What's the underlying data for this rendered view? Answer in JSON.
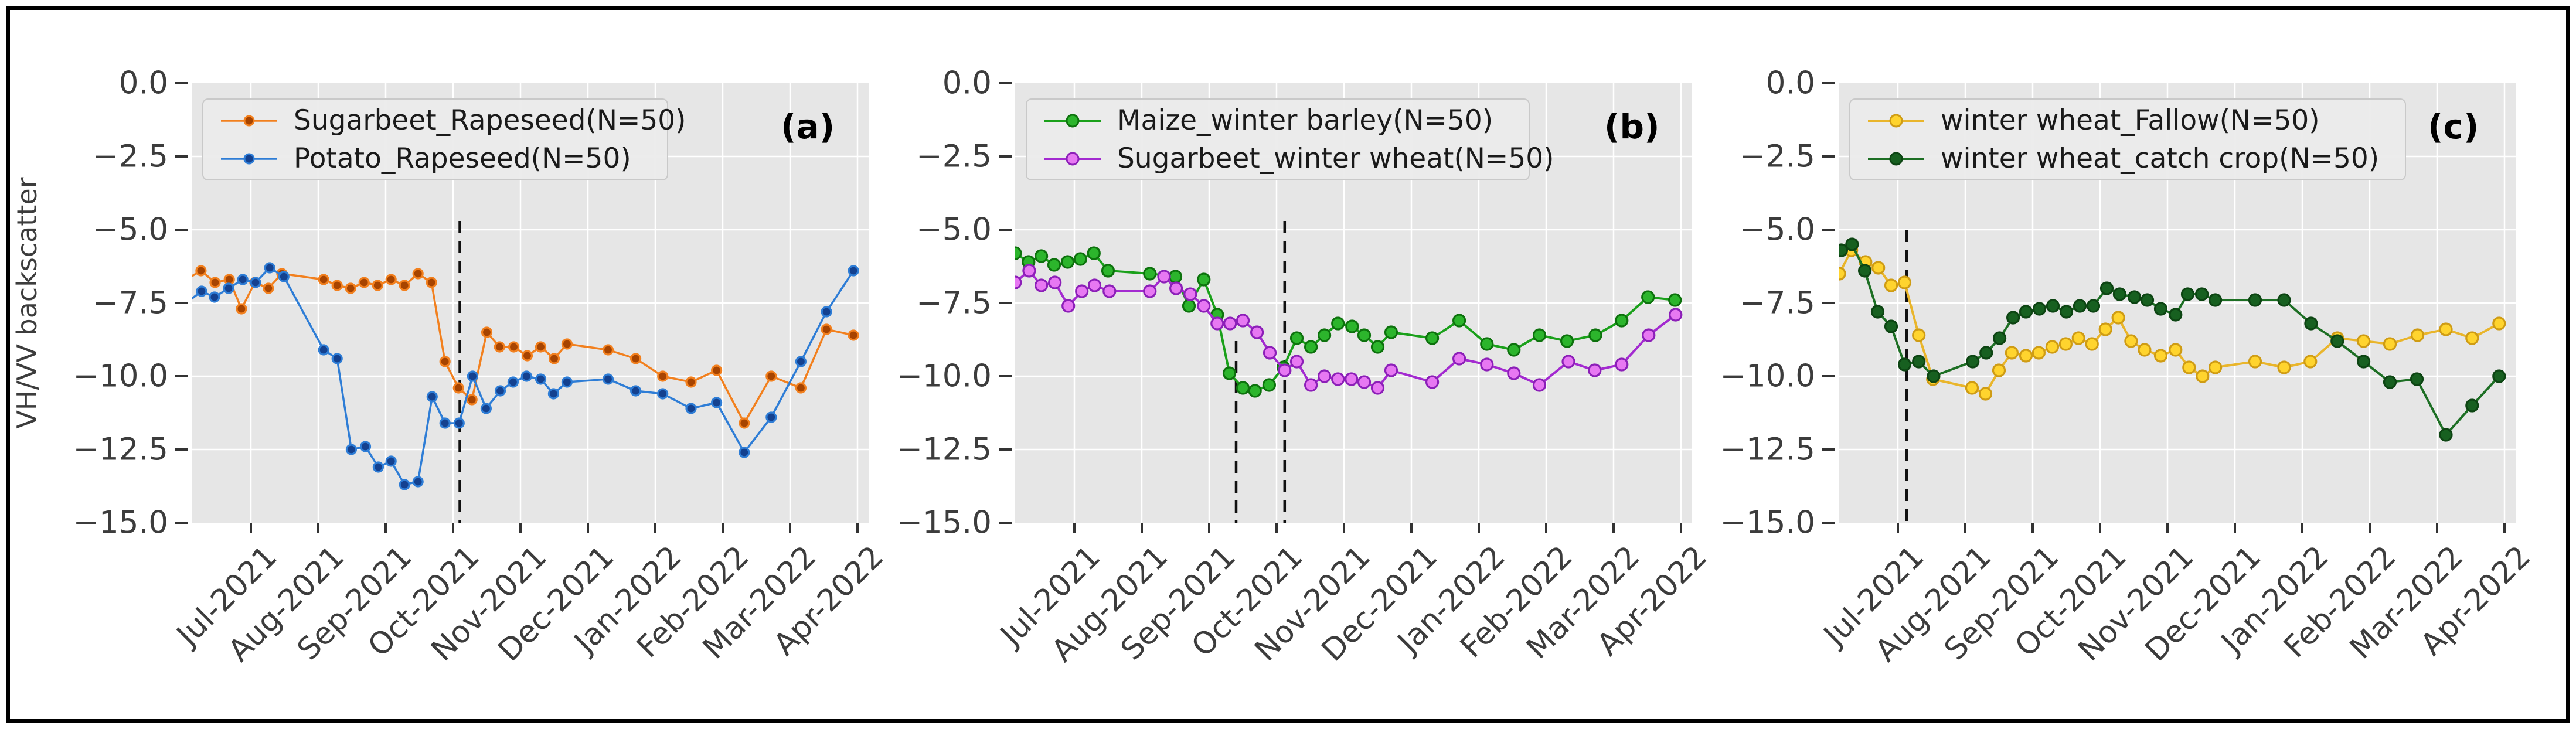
{
  "figure": {
    "ylabel": "VH/VV backscatter",
    "background": "#ffffff",
    "plot_background": "#e6e6e6",
    "gridline_color": "#ffffff",
    "border_color": "#000000",
    "tick_color": "#3c3c3c"
  },
  "axis": {
    "y_tick_labels": [
      "0.0",
      "−2.5",
      "−5.0",
      "−7.5",
      "−10.0",
      "−12.5",
      "−15.0"
    ],
    "y_tick_values": [
      0,
      -2.5,
      -5,
      -7.5,
      -10,
      -12.5,
      -15
    ],
    "x_tick_labels": [
      "Jul-2021",
      "Aug-2021",
      "Sep-2021",
      "Oct-2021",
      "Nov-2021",
      "Dec-2021",
      "Jan-2022",
      "Feb-2022",
      "Mar-2022",
      "Apr-2022"
    ],
    "ylim": [
      0,
      -15
    ]
  },
  "chart_data": [
    {
      "panel": "a",
      "letter": "(a)",
      "type": "line",
      "title": "",
      "xlabel": "",
      "ylabel": "VH/VV backscatter",
      "ylim": [
        0,
        -15
      ],
      "x_unit": "months since Jul-2021 (0 = Jul-2021, 9 = Apr-2022)",
      "grid": true,
      "legend_position": "upper-left",
      "dashed_lines": [
        {
          "x": 3.1,
          "y_top": -4.7,
          "y_bottom": -15
        }
      ],
      "series": [
        {
          "name": "Sugarbeet_Rapeseed(N=50)",
          "color": "#f2801e",
          "marker_face": "#a74400",
          "marker_r": 8,
          "line_w": 3.5,
          "x": [
            -0.96,
            -0.74,
            -0.53,
            -0.32,
            -0.14,
            0.06,
            0.26,
            0.46,
            1.08,
            1.28,
            1.48,
            1.68,
            1.88,
            2.08,
            2.28,
            2.48,
            2.68,
            2.88,
            3.08,
            3.28,
            3.5,
            3.69,
            3.9,
            4.1,
            4.3,
            4.5,
            4.69,
            5.3,
            5.71,
            6.11,
            6.53,
            6.91,
            7.32,
            7.72,
            8.16,
            8.54,
            8.94
          ],
          "y": [
            -6.7,
            -6.4,
            -6.8,
            -6.7,
            -7.7,
            -6.8,
            -7.0,
            -6.5,
            -6.7,
            -6.9,
            -7.0,
            -6.8,
            -6.9,
            -6.7,
            -6.9,
            -6.5,
            -6.8,
            -9.5,
            -10.4,
            -10.8,
            -8.5,
            -9.0,
            -9.0,
            -9.3,
            -9.0,
            -9.4,
            -8.9,
            -9.1,
            -9.4,
            -10.0,
            -10.2,
            -9.8,
            -11.6,
            -10.0,
            -10.4,
            -8.4,
            -8.6
          ]
        },
        {
          "name": "Potato_Rapeseed(N=50)",
          "color": "#2e7dd6",
          "marker_face": "#14418f",
          "marker_r": 8,
          "line_w": 3.5,
          "x": [
            -0.96,
            -0.73,
            -0.54,
            -0.33,
            -0.12,
            0.07,
            0.28,
            0.49,
            1.08,
            1.28,
            1.49,
            1.7,
            1.89,
            2.08,
            2.28,
            2.48,
            2.69,
            2.88,
            3.09,
            3.29,
            3.49,
            3.7,
            3.89,
            4.09,
            4.3,
            4.49,
            4.69,
            5.3,
            5.71,
            6.11,
            6.53,
            6.91,
            7.32,
            7.72,
            8.16,
            8.54,
            8.94
          ],
          "y": [
            -7.5,
            -7.1,
            -7.3,
            -7.0,
            -6.7,
            -6.8,
            -6.3,
            -6.6,
            -9.1,
            -9.4,
            -12.5,
            -12.4,
            -13.1,
            -12.9,
            -13.7,
            -13.6,
            -10.7,
            -11.6,
            -11.6,
            -10.0,
            -11.1,
            -10.5,
            -10.2,
            -10.0,
            -10.1,
            -10.6,
            -10.2,
            -10.1,
            -10.5,
            -10.6,
            -11.1,
            -10.9,
            -12.6,
            -11.4,
            -9.5,
            -7.8,
            -6.4
          ]
        }
      ]
    },
    {
      "panel": "b",
      "letter": "(b)",
      "type": "line",
      "title": "",
      "xlabel": "",
      "ylabel": "VH/VV backscatter",
      "ylim": [
        0,
        -15
      ],
      "x_unit": "months since Jul-2021 (0 = Jul-2021, 9 = Apr-2022)",
      "grid": true,
      "legend_position": "upper-left",
      "dashed_lines": [
        {
          "x": 2.4,
          "y_top": -8.8,
          "y_bottom": -15
        },
        {
          "x": 3.12,
          "y_top": -4.7,
          "y_bottom": -15
        }
      ],
      "series": [
        {
          "name": "Maize_winter barley(N=50)",
          "color": "#1aa01a",
          "marker_face": "#2cb52c",
          "marker_edge": "#0d720d",
          "marker_r": 10,
          "line_w": 4,
          "x": [
            -0.88,
            -0.68,
            -0.49,
            -0.3,
            -0.1,
            0.09,
            0.29,
            0.5,
            1.12,
            1.5,
            1.7,
            1.92,
            2.12,
            2.3,
            2.5,
            2.68,
            2.89,
            3.1,
            3.3,
            3.51,
            3.71,
            3.91,
            4.12,
            4.3,
            4.5,
            4.7,
            5.31,
            5.71,
            6.12,
            6.52,
            6.9,
            7.31,
            7.73,
            8.12,
            8.51,
            8.91
          ],
          "y": [
            -5.8,
            -6.1,
            -5.9,
            -6.2,
            -6.1,
            -6.0,
            -5.8,
            -6.4,
            -6.5,
            -6.6,
            -7.6,
            -6.7,
            -7.9,
            -9.9,
            -10.4,
            -10.5,
            -10.3,
            -9.7,
            -8.7,
            -9.0,
            -8.6,
            -8.2,
            -8.3,
            -8.6,
            -9.0,
            -8.5,
            -8.7,
            -8.1,
            -8.9,
            -9.1,
            -8.6,
            -8.8,
            -8.6,
            -8.1,
            -7.3,
            -7.4
          ]
        },
        {
          "name": "Sugarbeet_winter wheat(N=50)",
          "color": "#a32ad0",
          "marker_face": "#e778f2",
          "marker_edge": "#8c1fb8",
          "marker_r": 10,
          "line_w": 4,
          "x": [
            -0.88,
            -0.67,
            -0.49,
            -0.29,
            -0.09,
            0.11,
            0.3,
            0.52,
            1.12,
            1.33,
            1.51,
            1.72,
            1.92,
            2.12,
            2.31,
            2.5,
            2.71,
            2.9,
            3.12,
            3.3,
            3.51,
            3.71,
            3.91,
            4.11,
            4.3,
            4.5,
            4.7,
            5.31,
            5.71,
            6.12,
            6.52,
            6.9,
            7.33,
            7.72,
            8.12,
            8.52,
            8.92
          ],
          "y": [
            -6.8,
            -6.4,
            -6.9,
            -6.8,
            -7.6,
            -7.1,
            -6.9,
            -7.1,
            -7.1,
            -6.6,
            -7.0,
            -7.2,
            -7.6,
            -8.2,
            -8.2,
            -8.1,
            -8.5,
            -9.2,
            -9.8,
            -9.5,
            -10.3,
            -10.0,
            -10.1,
            -10.1,
            -10.2,
            -10.4,
            -9.8,
            -10.2,
            -9.4,
            -9.6,
            -9.9,
            -10.3,
            -9.5,
            -9.8,
            -9.6,
            -8.6,
            -7.9
          ]
        }
      ]
    },
    {
      "panel": "c",
      "letter": "(c)",
      "type": "line",
      "title": "",
      "xlabel": "",
      "ylabel": "VH/VV backscatter",
      "ylim": [
        0,
        -15
      ],
      "x_unit": "months since Jul-2021 (0 = Jul-2021, 9 = Apr-2022)",
      "grid": true,
      "legend_position": "upper-left",
      "dashed_lines": [
        {
          "x": 0.13,
          "y_top": -5.0,
          "y_bottom": -15
        }
      ],
      "series": [
        {
          "name": "winter wheat_Fallow(N=50)",
          "color": "#e9b52b",
          "marker_face": "#ffd42e",
          "marker_edge": "#cf9c14",
          "marker_r": 10,
          "line_w": 4,
          "x": [
            -0.87,
            -0.69,
            -0.48,
            -0.29,
            -0.1,
            0.1,
            0.31,
            0.52,
            1.1,
            1.3,
            1.5,
            1.69,
            1.9,
            2.09,
            2.29,
            2.49,
            2.68,
            2.88,
            3.08,
            3.27,
            3.46,
            3.66,
            3.9,
            4.12,
            4.32,
            4.52,
            4.71,
            5.3,
            5.73,
            6.12,
            6.52,
            6.91,
            7.3,
            7.71,
            8.13,
            8.52,
            8.92
          ],
          "y": [
            -6.5,
            -5.7,
            -6.1,
            -6.3,
            -6.9,
            -6.8,
            -8.6,
            -10.1,
            -10.4,
            -10.6,
            -9.8,
            -9.2,
            -9.3,
            -9.2,
            -9.0,
            -8.9,
            -8.7,
            -8.9,
            -8.4,
            -8.0,
            -8.8,
            -9.1,
            -9.3,
            -9.1,
            -9.7,
            -10.0,
            -9.7,
            -9.5,
            -9.7,
            -9.5,
            -8.7,
            -8.8,
            -8.9,
            -8.6,
            -8.4,
            -8.7,
            -8.2
          ]
        },
        {
          "name": "winter wheat_catch crop(N=50)",
          "color": "#1d6f24",
          "marker_face": "#176020",
          "marker_edge": "#0d4513",
          "marker_r": 10,
          "line_w": 4,
          "x": [
            -0.84,
            -0.68,
            -0.49,
            -0.3,
            -0.1,
            0.1,
            0.31,
            0.53,
            1.11,
            1.31,
            1.51,
            1.71,
            1.9,
            2.1,
            2.3,
            2.5,
            2.7,
            2.9,
            3.1,
            3.29,
            3.51,
            3.7,
            3.9,
            4.12,
            4.3,
            4.51,
            4.71,
            5.3,
            5.73,
            6.13,
            6.52,
            6.91,
            7.3,
            7.7,
            8.13,
            8.52,
            8.92
          ],
          "y": [
            -5.7,
            -5.5,
            -6.4,
            -7.8,
            -8.3,
            -9.6,
            -9.5,
            -10.0,
            -9.5,
            -9.2,
            -8.7,
            -8.0,
            -7.8,
            -7.7,
            -7.6,
            -7.8,
            -7.6,
            -7.6,
            -7.0,
            -7.2,
            -7.3,
            -7.4,
            -7.7,
            -7.9,
            -7.2,
            -7.2,
            -7.4,
            -7.4,
            -7.4,
            -8.2,
            -8.8,
            -9.5,
            -10.2,
            -10.1,
            -12.0,
            -11.0,
            -10.0
          ]
        }
      ]
    }
  ]
}
